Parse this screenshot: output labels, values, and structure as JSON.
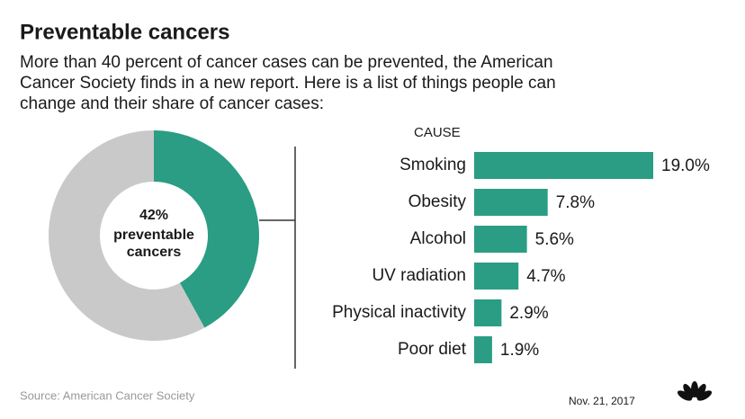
{
  "title": "Preventable cancers",
  "subtitle": [
    "More than 40 percent of cancer cases can be prevented, the American",
    "Cancer Society finds in a new report. Here is a list of things people can",
    "change and their share of cancer cases:"
  ],
  "source": "Source: American Cancer Society",
  "date": "Nov. 21, 2017",
  "chart_data": [
    {
      "type": "pie",
      "values": [
        42,
        58
      ],
      "value_labels": [
        "42%",
        null
      ],
      "colors": [
        "#2a9d84",
        "#c9c9c9"
      ],
      "center_label": [
        "preventable",
        "cancers"
      ]
    },
    {
      "type": "bar",
      "axis_label": "CAUSE",
      "categories": [
        "Smoking",
        "Obesity",
        "Alcohol",
        "UV radiation",
        "Physical inactivity",
        "Poor diet"
      ],
      "values": [
        19.0,
        7.8,
        5.6,
        4.7,
        2.9,
        1.9
      ],
      "value_labels": [
        "19.0%",
        "7.8%",
        "5.6%",
        "4.7%",
        "2.9%",
        "1.9%"
      ],
      "color": "#2a9d84"
    }
  ]
}
